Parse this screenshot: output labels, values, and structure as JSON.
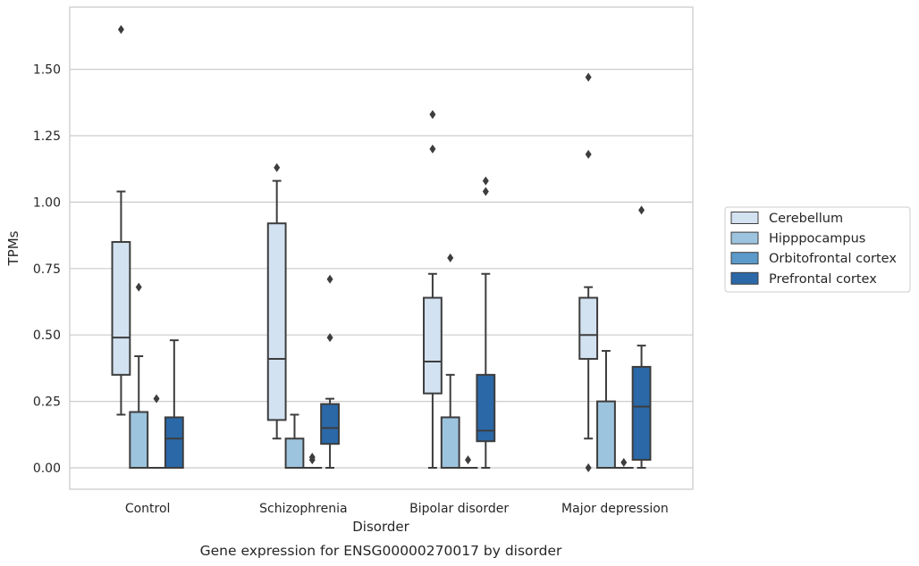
{
  "chart_data": {
    "type": "box",
    "title": "",
    "caption": "Gene expression for ENSG00000270017 by disorder",
    "xlabel": "Disorder",
    "ylabel": "TPMs",
    "ylim": [
      -0.08,
      1.74
    ],
    "yticks": [
      0.0,
      0.25,
      0.5,
      0.75,
      1.0,
      1.25,
      1.5
    ],
    "ytick_labels": [
      "0.00",
      "0.25",
      "0.50",
      "0.75",
      "1.00",
      "1.25",
      "1.50"
    ],
    "grid": "horizontal",
    "legend_position": "right",
    "categories": [
      "Control",
      "Schizophrenia",
      "Bipolar disorder",
      "Major depression"
    ],
    "series": [
      {
        "name": "Cerebellum",
        "color": "#d3e2f1",
        "boxes": [
          {
            "q1": 0.35,
            "median": 0.49,
            "q3": 0.85,
            "whisker_low": 0.2,
            "whisker_high": 1.04,
            "outliers": [
              1.65
            ]
          },
          {
            "q1": 0.18,
            "median": 0.41,
            "q3": 0.92,
            "whisker_low": 0.11,
            "whisker_high": 1.08,
            "outliers": [
              1.13
            ]
          },
          {
            "q1": 0.28,
            "median": 0.4,
            "q3": 0.64,
            "whisker_low": 0.0,
            "whisker_high": 0.73,
            "outliers": [
              1.33,
              1.2
            ]
          },
          {
            "q1": 0.41,
            "median": 0.5,
            "q3": 0.64,
            "whisker_low": 0.11,
            "whisker_high": 0.68,
            "outliers": [
              1.47,
              1.18,
              0.0
            ]
          }
        ]
      },
      {
        "name": "Hipppocampus",
        "color": "#9dc4de",
        "boxes": [
          {
            "q1": 0.0,
            "median": 0.0,
            "q3": 0.21,
            "whisker_low": 0.0,
            "whisker_high": 0.42,
            "outliers": [
              0.68
            ]
          },
          {
            "q1": 0.0,
            "median": 0.0,
            "q3": 0.11,
            "whisker_low": 0.0,
            "whisker_high": 0.2,
            "outliers": []
          },
          {
            "q1": 0.0,
            "median": 0.0,
            "q3": 0.19,
            "whisker_low": 0.0,
            "whisker_high": 0.35,
            "outliers": [
              0.79
            ]
          },
          {
            "q1": 0.0,
            "median": 0.0,
            "q3": 0.25,
            "whisker_low": 0.0,
            "whisker_high": 0.44,
            "outliers": []
          }
        ]
      },
      {
        "name": "Orbitofrontal cortex",
        "color": "#5b9ac9",
        "boxes": [
          {
            "q1": 0.0,
            "median": 0.0,
            "q3": 0.0,
            "whisker_low": 0.0,
            "whisker_high": 0.0,
            "outliers": [
              0.26
            ]
          },
          {
            "q1": 0.0,
            "median": 0.0,
            "q3": 0.0,
            "whisker_low": 0.0,
            "whisker_high": 0.0,
            "outliers": [
              0.04,
              0.03
            ]
          },
          {
            "q1": 0.0,
            "median": 0.0,
            "q3": 0.0,
            "whisker_low": 0.0,
            "whisker_high": 0.0,
            "outliers": [
              0.03
            ]
          },
          {
            "q1": 0.0,
            "median": 0.0,
            "q3": 0.0,
            "whisker_low": 0.0,
            "whisker_high": 0.0,
            "outliers": [
              0.02
            ]
          }
        ]
      },
      {
        "name": "Prefrontal cortex",
        "color": "#2a68a8",
        "boxes": [
          {
            "q1": 0.0,
            "median": 0.11,
            "q3": 0.19,
            "whisker_low": 0.0,
            "whisker_high": 0.48,
            "outliers": []
          },
          {
            "q1": 0.09,
            "median": 0.15,
            "q3": 0.24,
            "whisker_low": 0.0,
            "whisker_high": 0.26,
            "outliers": [
              0.71,
              0.49
            ]
          },
          {
            "q1": 0.1,
            "median": 0.14,
            "q3": 0.35,
            "whisker_low": 0.0,
            "whisker_high": 0.73,
            "outliers": [
              1.08,
              1.04
            ]
          },
          {
            "q1": 0.03,
            "median": 0.23,
            "q3": 0.38,
            "whisker_low": 0.0,
            "whisker_high": 0.46,
            "outliers": [
              0.97
            ]
          }
        ]
      }
    ]
  }
}
